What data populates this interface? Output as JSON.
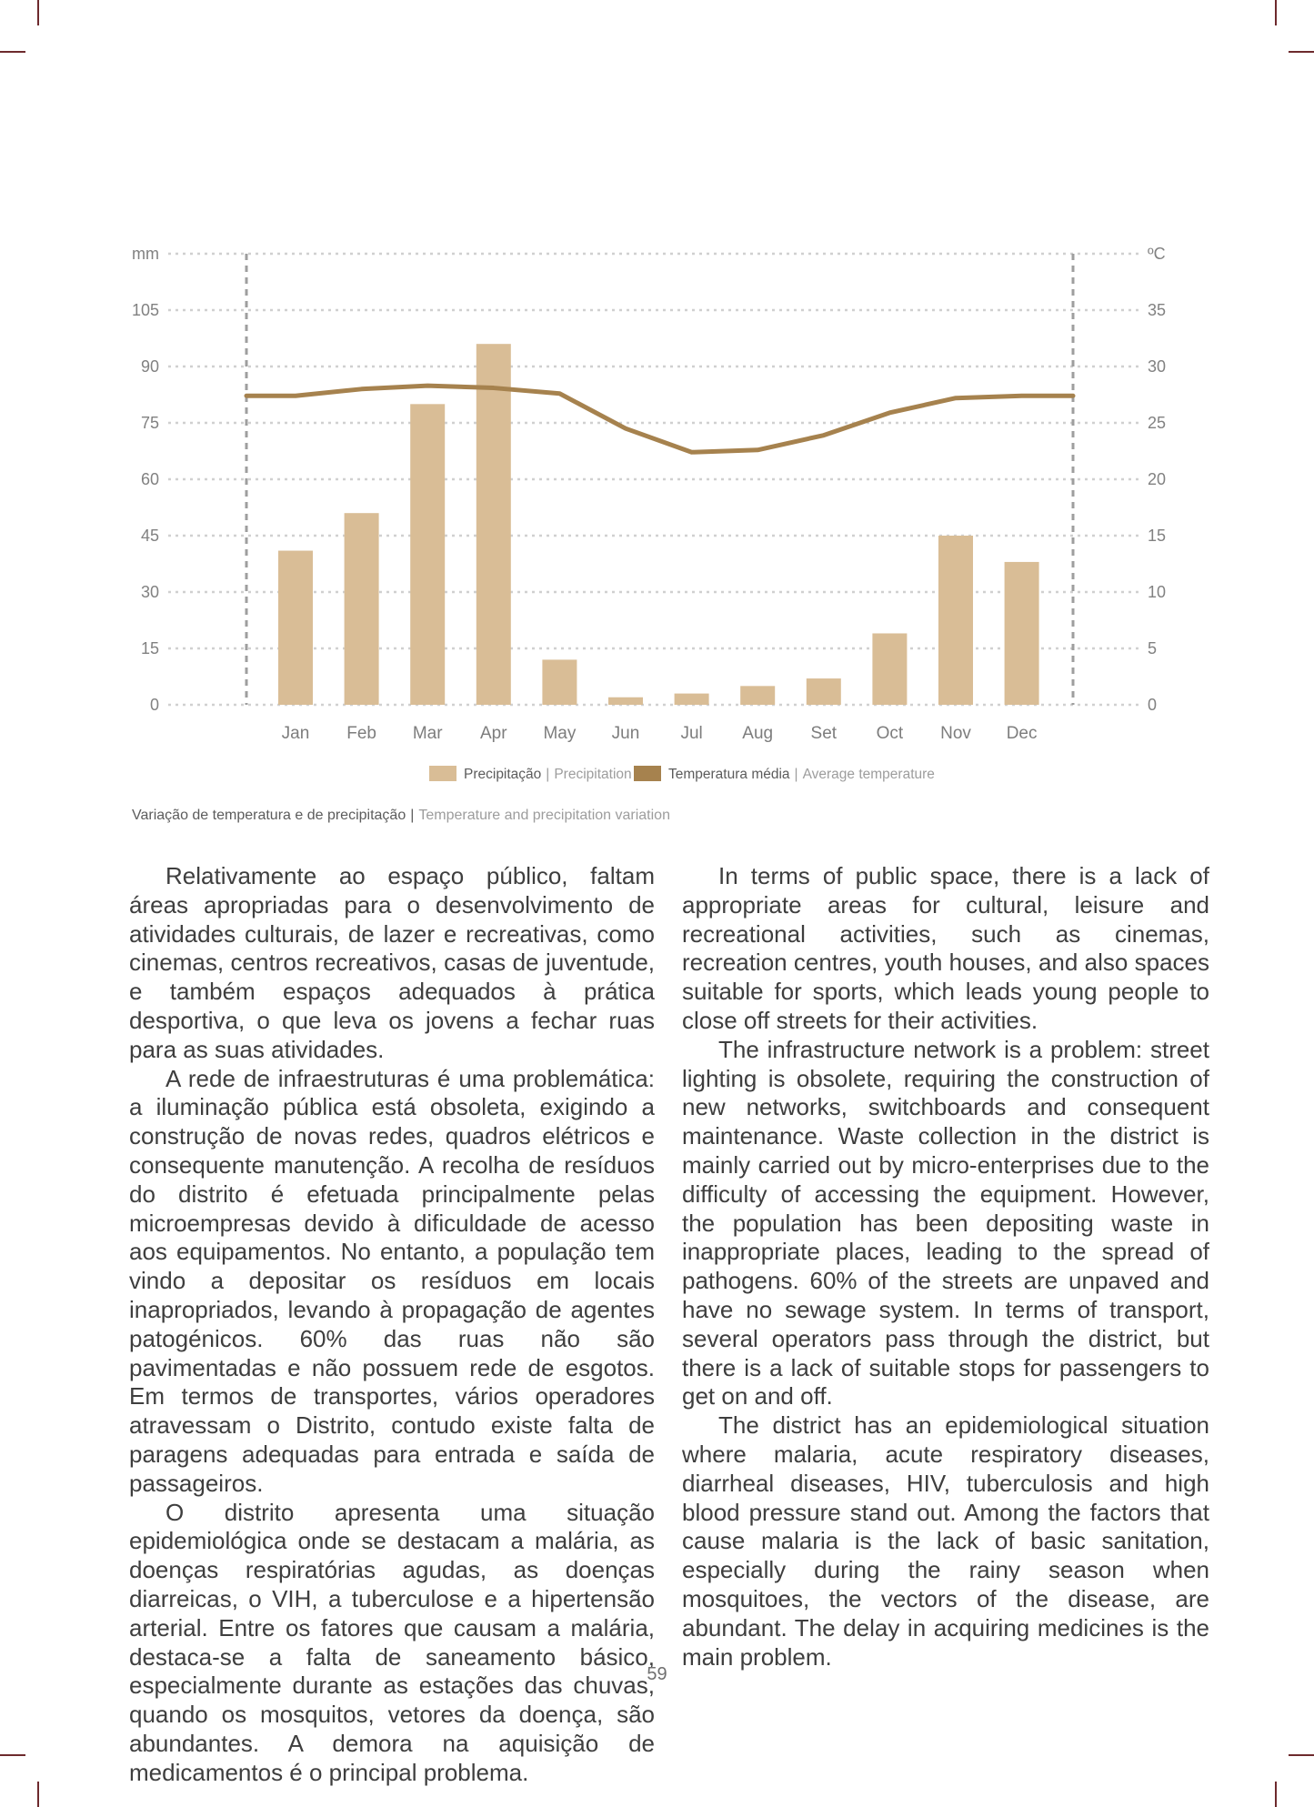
{
  "page": {
    "number": "59"
  },
  "chart_data": {
    "type": "bar",
    "title": "Variação de temperatura e de precipitação | Temperature and precipitation variation",
    "categories": [
      "Jan",
      "Feb",
      "Mar",
      "Apr",
      "May",
      "Jun",
      "Jul",
      "Aug",
      "Set",
      "Oct",
      "Nov",
      "Dec"
    ],
    "series": [
      {
        "name": "Precipitação | Precipitation",
        "type": "bar",
        "unit": "mm",
        "values": [
          41,
          51,
          80,
          96,
          12,
          2,
          3,
          5,
          7,
          19,
          45,
          38
        ]
      },
      {
        "name": "Temperatura média | Average temperature",
        "type": "line",
        "unit": "ºC",
        "values": [
          27.4,
          28.0,
          28.3,
          28.1,
          27.6,
          24.5,
          22.4,
          22.6,
          23.9,
          25.9,
          27.2,
          27.4
        ]
      }
    ],
    "left_axis": {
      "label": "mm",
      "ticks": [
        0,
        15,
        30,
        45,
        60,
        75,
        90,
        105
      ],
      "max": 120
    },
    "right_axis": {
      "label": "ºC",
      "ticks": [
        0,
        5,
        10,
        15,
        20,
        25,
        30,
        35
      ],
      "max": 40
    },
    "grid": "dotted horizontal lines, dashed vertical plot borders",
    "legend_position": "bottom center",
    "colors": {
      "bar": "#d9bd96",
      "line": "#a6824e"
    }
  },
  "legend": {
    "sep": "|",
    "item1_pt": "Precipitação",
    "item1_en": "Precipitation",
    "item2_pt": "Temperatura média",
    "item2_en": "Average temperature"
  },
  "caption": {
    "pt": "Variação de temperatura e de precipitação",
    "sep": "|",
    "en": "Temperature and precipitation variation"
  },
  "columns": {
    "pt": [
      "Relativamente ao espaço público, faltam áreas apropriadas para o desenvolvimento de atividades culturais, de lazer e recreativas, como cinemas, centros recreativos, casas de juventude, e também espaços adequados à prática desportiva, o que leva os jovens a fechar ruas para as suas atividades.",
      "A rede de infraestruturas é uma problemática: a iluminação pública está obsoleta, exigindo a construção de novas redes, quadros elétricos e consequente manutenção. A recolha de resíduos do distrito é efetuada principalmente pelas microempresas devido à dificuldade de acesso aos equipamentos. No entanto, a população tem vindo a depositar os resíduos em locais inapropriados, levando à propagação de agentes patogénicos. 60% das ruas não são pavimentadas e não possuem rede de esgotos. Em termos de transportes, vários operadores atravessam o Distrito, contudo existe falta de paragens adequadas para entrada e saída de passageiros.",
      "O distrito apresenta uma situação epidemiológica onde se destacam a malária, as doenças respiratórias agudas, as doenças diarreicas, o VIH, a tuberculose e a hipertensão arterial. Entre os fatores que causam a malária, destaca-se a falta de saneamento básico, especialmente durante as estações das chuvas, quando os mosquitos, vetores da doença, são abundantes. A demora na aquisição de medicamentos é o principal problema."
    ],
    "en": [
      "In terms of public space, there is a lack of appropriate areas for cultural, leisure and recreational activities, such as cinemas, recreation centres, youth houses, and also spaces suitable for sports, which leads young people to close off streets for their activities.",
      "The infrastructure network is a problem: street lighting is obsolete, requiring the construction of new networks, switchboards and consequent maintenance. Waste collection in the district is mainly carried out by micro-enterprises due to the difficulty of accessing the equipment. However, the population has been depositing waste in inappropriate places, leading to the spread of pathogens. 60% of the streets are unpaved and have no sewage system. In terms of transport, several operators pass through the district, but there is a lack of suitable stops for passengers to get on and off.",
      "The district has an epidemiological situation where malaria, acute respiratory diseases, diarrheal diseases, HIV, tuberculosis and high blood pressure stand out. Among the factors that cause malaria is the lack of basic sanitation, especially during the rainy season when mosquitoes, the vectors of the disease, are abundant. The delay in acquiring medicines is the main problem."
    ]
  }
}
